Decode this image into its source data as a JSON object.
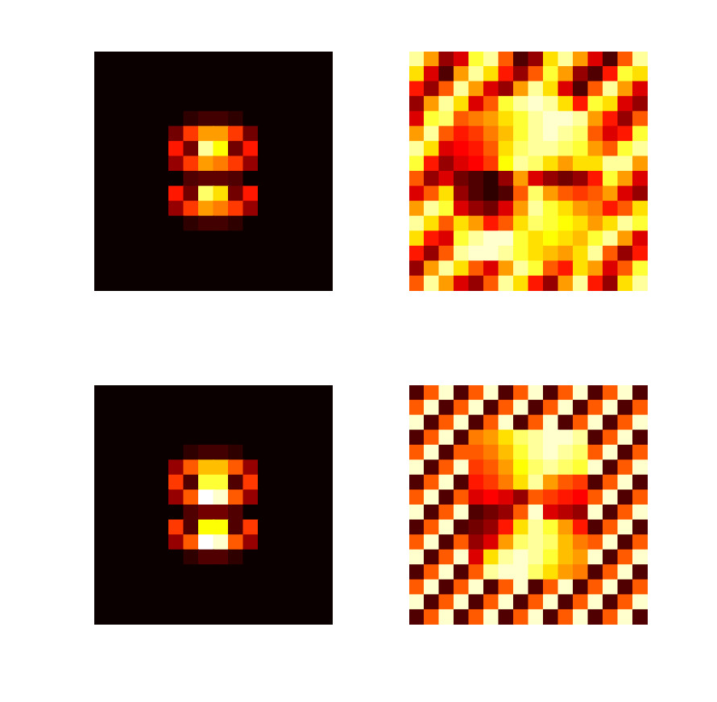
{
  "chart_data": [
    {
      "type": "heatmap",
      "color": "hot",
      "tick_labels": false,
      "zlim": [
        0,
        1
      ],
      "cells": [
        [
          0,
          0,
          0,
          0,
          0,
          0,
          0,
          0,
          0,
          0,
          0,
          0,
          0,
          0,
          0,
          0
        ],
        [
          0,
          0,
          0,
          0,
          0,
          0,
          0,
          0,
          0,
          0,
          0,
          0,
          0,
          0,
          0,
          0
        ],
        [
          0,
          0,
          0,
          0,
          0,
          0,
          0,
          0,
          0,
          0,
          0,
          0,
          0,
          0,
          0,
          0
        ],
        [
          0,
          0,
          0,
          0,
          0,
          0,
          0,
          0,
          0,
          0,
          0,
          0,
          0,
          0,
          0,
          0
        ],
        [
          0,
          0,
          0,
          0,
          0,
          0,
          0.05,
          0.08,
          0.08,
          0.05,
          0,
          0,
          0,
          0,
          0,
          0
        ],
        [
          0,
          0,
          0,
          0,
          0,
          0.15,
          0.45,
          0.6,
          0.6,
          0.45,
          0.15,
          0,
          0,
          0,
          0,
          0
        ],
        [
          0,
          0,
          0,
          0,
          0,
          0.4,
          0.15,
          0.9,
          0.75,
          0.15,
          0.4,
          0,
          0,
          0,
          0,
          0
        ],
        [
          0,
          0,
          0,
          0,
          0,
          0.2,
          0.45,
          0.6,
          0.55,
          0.45,
          0.2,
          0,
          0,
          0,
          0,
          0
        ],
        [
          0,
          0,
          0,
          0,
          0,
          0,
          0.1,
          0.12,
          0.12,
          0.1,
          0,
          0,
          0,
          0,
          0,
          0
        ],
        [
          0,
          0,
          0,
          0,
          0,
          0.4,
          0.15,
          0.85,
          0.7,
          0.15,
          0.4,
          0,
          0,
          0,
          0,
          0
        ],
        [
          0,
          0,
          0,
          0,
          0,
          0.2,
          0.45,
          0.6,
          0.55,
          0.45,
          0.2,
          0,
          0,
          0,
          0,
          0
        ],
        [
          0,
          0,
          0,
          0,
          0,
          0,
          0.05,
          0.08,
          0.08,
          0.05,
          0,
          0,
          0,
          0,
          0,
          0
        ],
        [
          0,
          0,
          0,
          0,
          0,
          0,
          0,
          0,
          0,
          0,
          0,
          0,
          0,
          0,
          0,
          0
        ],
        [
          0,
          0,
          0,
          0,
          0,
          0,
          0,
          0,
          0,
          0,
          0,
          0,
          0,
          0,
          0,
          0
        ],
        [
          0,
          0,
          0,
          0,
          0,
          0,
          0,
          0,
          0,
          0,
          0,
          0,
          0,
          0,
          0,
          0
        ],
        [
          0,
          0,
          0,
          0,
          0,
          0,
          0,
          0,
          0,
          0,
          0,
          0,
          0,
          0,
          0,
          0
        ]
      ]
    },
    {
      "type": "heatmap",
      "color": "hot",
      "tick_labels": false,
      "zlim": [
        0,
        1
      ],
      "cells": [
        [
          0.9,
          0.6,
          0.2,
          0.3,
          0.8,
          0.9,
          0.5,
          0.1,
          0.2,
          0.7,
          0.9,
          0.6,
          0.3,
          0.1,
          0.5,
          0.9
        ],
        [
          0.7,
          0.3,
          0.1,
          0.6,
          0.9,
          0.7,
          0.4,
          0.2,
          0.5,
          0.8,
          0.6,
          0.2,
          0.1,
          0.4,
          0.8,
          0.7
        ],
        [
          0.4,
          0.2,
          0.5,
          0.9,
          0.6,
          0.3,
          0.2,
          0.6,
          0.9,
          0.7,
          0.3,
          0.1,
          0.5,
          0.9,
          0.6,
          0.3
        ],
        [
          0.2,
          0.6,
          0.9,
          0.7,
          0.3,
          0.5,
          0.8,
          0.9,
          0.95,
          0.9,
          0.7,
          0.4,
          0.8,
          0.7,
          0.3,
          0.2
        ],
        [
          0.3,
          0.8,
          0.85,
          0.5,
          0.55,
          0.6,
          0.7,
          0.8,
          0.9,
          0.95,
          0.95,
          0.9,
          0.6,
          0.4,
          0.2,
          0.5
        ],
        [
          0.6,
          0.9,
          0.5,
          0.4,
          0.45,
          0.55,
          0.65,
          0.8,
          0.9,
          0.95,
          0.9,
          0.85,
          0.5,
          0.3,
          0.4,
          0.8
        ],
        [
          0.9,
          0.7,
          0.3,
          0.35,
          0.4,
          0.5,
          0.7,
          0.85,
          0.9,
          0.9,
          0.85,
          0.8,
          0.6,
          0.5,
          0.8,
          0.9
        ],
        [
          0.8,
          0.4,
          0.2,
          0.3,
          0.35,
          0.45,
          0.75,
          0.9,
          0.85,
          0.7,
          0.6,
          0.7,
          0.7,
          0.9,
          0.9,
          0.6
        ],
        [
          0.5,
          0.2,
          0.3,
          0.15,
          0.1,
          0.05,
          0.2,
          0.6,
          0.3,
          0.2,
          0.15,
          0.2,
          0.4,
          0.8,
          0.6,
          0.3
        ],
        [
          0.3,
          0.5,
          0.7,
          0.2,
          0.1,
          0.05,
          0.1,
          0.5,
          0.85,
          0.6,
          0.5,
          0.45,
          0.5,
          0.6,
          0.3,
          0.2
        ],
        [
          0.6,
          0.9,
          0.8,
          0.3,
          0.2,
          0.15,
          0.3,
          0.6,
          0.9,
          0.8,
          0.7,
          0.6,
          0.55,
          0.4,
          0.5,
          0.7
        ],
        [
          0.9,
          0.7,
          0.5,
          0.7,
          0.6,
          0.4,
          0.5,
          0.7,
          0.85,
          0.8,
          0.75,
          0.7,
          0.6,
          0.7,
          0.9,
          0.8
        ],
        [
          0.7,
          0.4,
          0.3,
          0.8,
          0.9,
          0.95,
          0.95,
          0.8,
          0.7,
          0.75,
          0.7,
          0.65,
          0.8,
          0.9,
          0.6,
          0.3
        ],
        [
          0.4,
          0.2,
          0.5,
          0.9,
          0.95,
          0.95,
          0.9,
          0.8,
          0.7,
          0.65,
          0.6,
          0.7,
          0.9,
          0.5,
          0.2,
          0.4
        ],
        [
          0.2,
          0.6,
          0.9,
          0.7,
          0.5,
          0.3,
          0.6,
          0.9,
          0.8,
          0.5,
          0.4,
          0.7,
          0.6,
          0.3,
          0.5,
          0.8
        ],
        [
          0.5,
          0.9,
          0.6,
          0.3,
          0.2,
          0.5,
          0.9,
          0.7,
          0.4,
          0.2,
          0.6,
          0.9,
          0.4,
          0.2,
          0.7,
          0.9
        ]
      ]
    },
    {
      "type": "heatmap",
      "color": "hot",
      "tick_labels": false,
      "zlim": [
        0,
        1
      ],
      "cells": [
        [
          0,
          0,
          0,
          0,
          0,
          0,
          0,
          0,
          0,
          0,
          0,
          0,
          0,
          0,
          0,
          0
        ],
        [
          0,
          0,
          0,
          0,
          0,
          0,
          0,
          0,
          0,
          0,
          0,
          0,
          0,
          0,
          0,
          0
        ],
        [
          0,
          0,
          0,
          0,
          0,
          0,
          0,
          0,
          0,
          0,
          0,
          0,
          0,
          0,
          0,
          0
        ],
        [
          0,
          0,
          0,
          0,
          0,
          0,
          0,
          0,
          0,
          0,
          0,
          0,
          0,
          0,
          0,
          0
        ],
        [
          0,
          0,
          0,
          0,
          0,
          0,
          0.05,
          0.08,
          0.08,
          0.05,
          0,
          0,
          0,
          0,
          0,
          0
        ],
        [
          0,
          0,
          0,
          0,
          0,
          0.2,
          0.5,
          0.65,
          0.65,
          0.5,
          0.2,
          0,
          0,
          0,
          0,
          0
        ],
        [
          0,
          0,
          0,
          0,
          0,
          0.45,
          0.1,
          0.8,
          0.8,
          0.1,
          0.45,
          0,
          0,
          0,
          0,
          0
        ],
        [
          0,
          0,
          0,
          0,
          0,
          0.2,
          0.5,
          1,
          0.95,
          0.5,
          0.2,
          0,
          0,
          0,
          0,
          0
        ],
        [
          0,
          0,
          0,
          0,
          0,
          0,
          0.1,
          0.15,
          0.15,
          0.1,
          0,
          0,
          0,
          0,
          0,
          0
        ],
        [
          0,
          0,
          0,
          0,
          0,
          0.45,
          0.1,
          0.75,
          0.75,
          0.1,
          0.45,
          0,
          0,
          0,
          0,
          0
        ],
        [
          0,
          0,
          0,
          0,
          0,
          0.2,
          0.5,
          1,
          0.95,
          0.5,
          0.2,
          0,
          0,
          0,
          0,
          0
        ],
        [
          0,
          0,
          0,
          0,
          0,
          0,
          0.05,
          0.1,
          0.1,
          0.05,
          0,
          0,
          0,
          0,
          0,
          0
        ],
        [
          0,
          0,
          0,
          0,
          0,
          0,
          0,
          0,
          0,
          0,
          0,
          0,
          0,
          0,
          0,
          0
        ],
        [
          0,
          0,
          0,
          0,
          0,
          0,
          0,
          0,
          0,
          0,
          0,
          0,
          0,
          0,
          0,
          0
        ],
        [
          0,
          0,
          0,
          0,
          0,
          0,
          0,
          0,
          0,
          0,
          0,
          0,
          0,
          0,
          0,
          0
        ],
        [
          0,
          0,
          0,
          0,
          0,
          0,
          0,
          0,
          0,
          0,
          0,
          0,
          0,
          0,
          0,
          0
        ]
      ]
    },
    {
      "type": "heatmap",
      "color": "hot",
      "tick_labels": false,
      "zlim": [
        0,
        1
      ],
      "cells": [
        [
          0.1,
          0.5,
          0.95,
          0.1,
          0.5,
          0.95,
          0.1,
          0.5,
          0.95,
          0.1,
          0.5,
          0.95,
          0.1,
          0.5,
          0.95,
          0.1
        ],
        [
          0.5,
          0.95,
          0.1,
          0.5,
          0.95,
          0.1,
          0.5,
          0.95,
          0.1,
          0.5,
          0.95,
          0.1,
          0.5,
          0.95,
          0.1,
          0.5
        ],
        [
          0.95,
          0.1,
          0.5,
          0.95,
          0.1,
          0.5,
          0.95,
          0.1,
          0.5,
          0.95,
          0.1,
          0.5,
          0.95,
          0.1,
          0.5,
          0.95
        ],
        [
          0.1,
          0.5,
          0.95,
          0.1,
          0.55,
          0.6,
          0.7,
          0.85,
          0.9,
          0.95,
          0.95,
          0.9,
          0.1,
          0.5,
          0.95,
          0.1
        ],
        [
          0.5,
          0.95,
          0.1,
          0.5,
          0.5,
          0.55,
          0.65,
          0.8,
          0.9,
          0.95,
          0.9,
          0.85,
          0.5,
          0.95,
          0.1,
          0.5
        ],
        [
          0.95,
          0.1,
          0.5,
          0.95,
          0.45,
          0.5,
          0.6,
          0.75,
          0.85,
          0.9,
          0.85,
          0.8,
          0.95,
          0.1,
          0.5,
          0.95
        ],
        [
          0.1,
          0.5,
          0.95,
          0.1,
          0.4,
          0.45,
          0.55,
          0.7,
          0.9,
          0.6,
          0.5,
          0.45,
          0.1,
          0.5,
          0.95,
          0.1
        ],
        [
          0.5,
          0.95,
          0.1,
          0.5,
          0.3,
          0.35,
          0.3,
          0.2,
          0.5,
          0.45,
          0.4,
          0.35,
          0.5,
          0.95,
          0.1,
          0.5
        ],
        [
          0.95,
          0.1,
          0.5,
          0.95,
          0.1,
          0.15,
          0.2,
          0.5,
          0.95,
          0.3,
          0.25,
          0.2,
          0.95,
          0.1,
          0.5,
          0.95
        ],
        [
          0.1,
          0.5,
          0.95,
          0.1,
          0.15,
          0.2,
          0.4,
          0.7,
          0.9,
          0.8,
          0.6,
          0.4,
          0.1,
          0.5,
          0.95,
          0.1
        ],
        [
          0.5,
          0.95,
          0.1,
          0.5,
          0.2,
          0.3,
          0.6,
          0.85,
          0.9,
          0.85,
          0.65,
          0.55,
          0.5,
          0.95,
          0.1,
          0.5
        ],
        [
          0.95,
          0.1,
          0.5,
          0.95,
          0.3,
          0.7,
          0.9,
          0.95,
          0.9,
          0.8,
          0.65,
          0.6,
          0.95,
          0.1,
          0.5,
          0.95
        ],
        [
          0.1,
          0.5,
          0.95,
          0.1,
          0.5,
          0.9,
          0.95,
          0.95,
          0.85,
          0.7,
          0.6,
          0.55,
          0.1,
          0.5,
          0.95,
          0.1
        ],
        [
          0.5,
          0.95,
          0.1,
          0.5,
          0.95,
          0.1,
          0.5,
          0.95,
          0.1,
          0.5,
          0.95,
          0.1,
          0.5,
          0.95,
          0.1,
          0.5
        ],
        [
          0.95,
          0.1,
          0.5,
          0.95,
          0.1,
          0.5,
          0.95,
          0.1,
          0.5,
          0.95,
          0.1,
          0.5,
          0.95,
          0.1,
          0.5,
          0.95
        ],
        [
          0.1,
          0.5,
          0.95,
          0.1,
          0.5,
          0.95,
          0.1,
          0.5,
          0.95,
          0.1,
          0.5,
          0.95,
          0.1,
          0.5,
          0.95,
          0.1
        ]
      ]
    }
  ]
}
